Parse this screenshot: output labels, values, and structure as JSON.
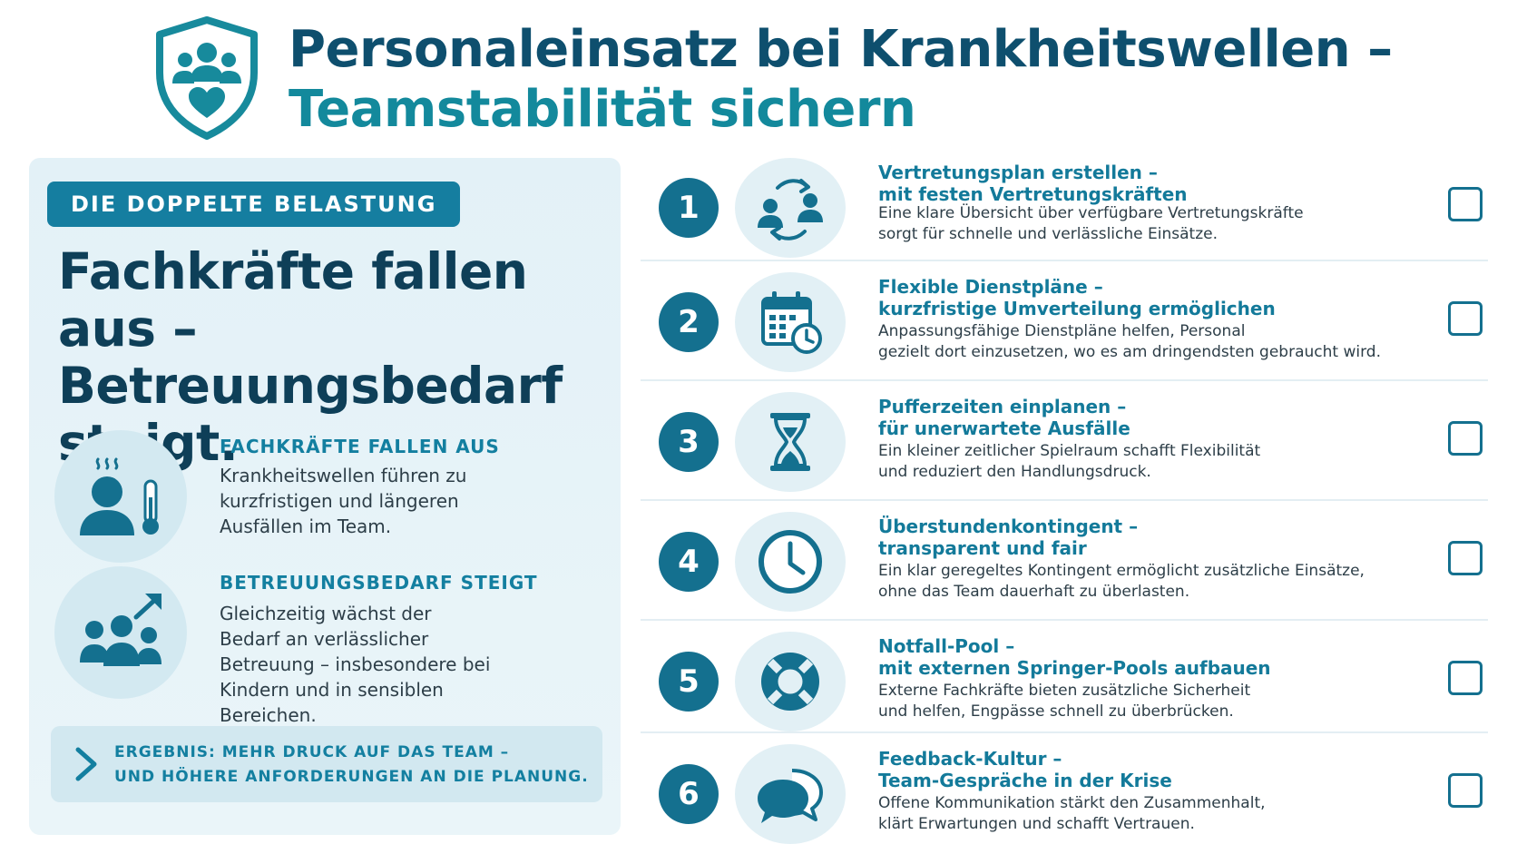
{
  "header": {
    "title_line1": "Personaleinsatz bei Krankheitswellen –",
    "title_line2": "Teamstabilität sichern"
  },
  "left": {
    "badge": "DIE DOPPELTE BELASTUNG",
    "headline": "Fachkräfte fallen aus – Betreuungsbedarf steigt.",
    "info": [
      {
        "heading": "FACHKRÄFTE FALLEN AUS",
        "text": "Krankheitswellen führen zu kurzfristigen und längeren Ausfällen im Team.",
        "icon": "sick-person-thermometer-icon"
      },
      {
        "heading": "BETREUUNGSBEDARF STEIGT",
        "text": "Gleichzeitig wächst der Bedarf an verlässlicher Betreuung – insbesondere bei Kindern und in sensiblen Bereichen.",
        "icon": "group-growth-arrow-icon"
      }
    ],
    "result_line1": "ERGEBNIS: MEHR DRUCK AUF DAS TEAM –",
    "result_line2": "UND HÖHERE ANFORDERUNGEN AN DIE PLANUNG."
  },
  "steps": [
    {
      "num": "1",
      "title1": "Vertretungsplan erstellen –",
      "title2": "mit festen Vertretungskräften",
      "desc1": "Eine klare Übersicht über verfügbare Vertretungskräfte",
      "desc2": "sorgt für schnelle und verlässliche Einsätze.",
      "icon": "people-swap-icon"
    },
    {
      "num": "2",
      "title1": "Flexible Dienstpläne –",
      "title2": "kurzfristige Umverteilung ermöglichen",
      "desc1": "Anpassungsfähige Dienstpläne helfen, Personal",
      "desc2": "gezielt dort einzusetzen, wo es am dringendsten gebraucht wird.",
      "icon": "calendar-clock-icon"
    },
    {
      "num": "3",
      "title1": "Pufferzeiten einplanen –",
      "title2": "für unerwartete Ausfälle",
      "desc1": "Ein kleiner zeitlicher Spielraum schafft Flexibilität",
      "desc2": "und reduziert den Handlungsdruck.",
      "icon": "hourglass-icon"
    },
    {
      "num": "4",
      "title1": "Überstundenkontingent –",
      "title2": "transparent und fair",
      "desc1": "Ein klar geregeltes Kontingent ermöglicht zusätzliche Einsätze,",
      "desc2": "ohne das Team dauerhaft zu überlasten.",
      "icon": "clock-icon"
    },
    {
      "num": "5",
      "title1": "Notfall-Pool –",
      "title2": "mit externen Springer-Pools aufbauen",
      "desc1": "Externe Fachkräfte bieten zusätzliche Sicherheit",
      "desc2": "und helfen, Engpässe schnell zu überbrücken.",
      "icon": "lifebuoy-icon"
    },
    {
      "num": "6",
      "title1": "Feedback-Kultur –",
      "title2": "Team-Gespräche in der Krise",
      "desc1": "Offene Kommunikation stärkt den Zusammenhalt,",
      "desc2": "klärt Erwartungen und schafft Vertrauen.",
      "icon": "chat-bubbles-icon"
    }
  ],
  "colors": {
    "primary_dark": "#0e4f6e",
    "primary_teal": "#13899c",
    "accent_blue": "#157ea0",
    "panel_bg": "#e3f1f7"
  }
}
